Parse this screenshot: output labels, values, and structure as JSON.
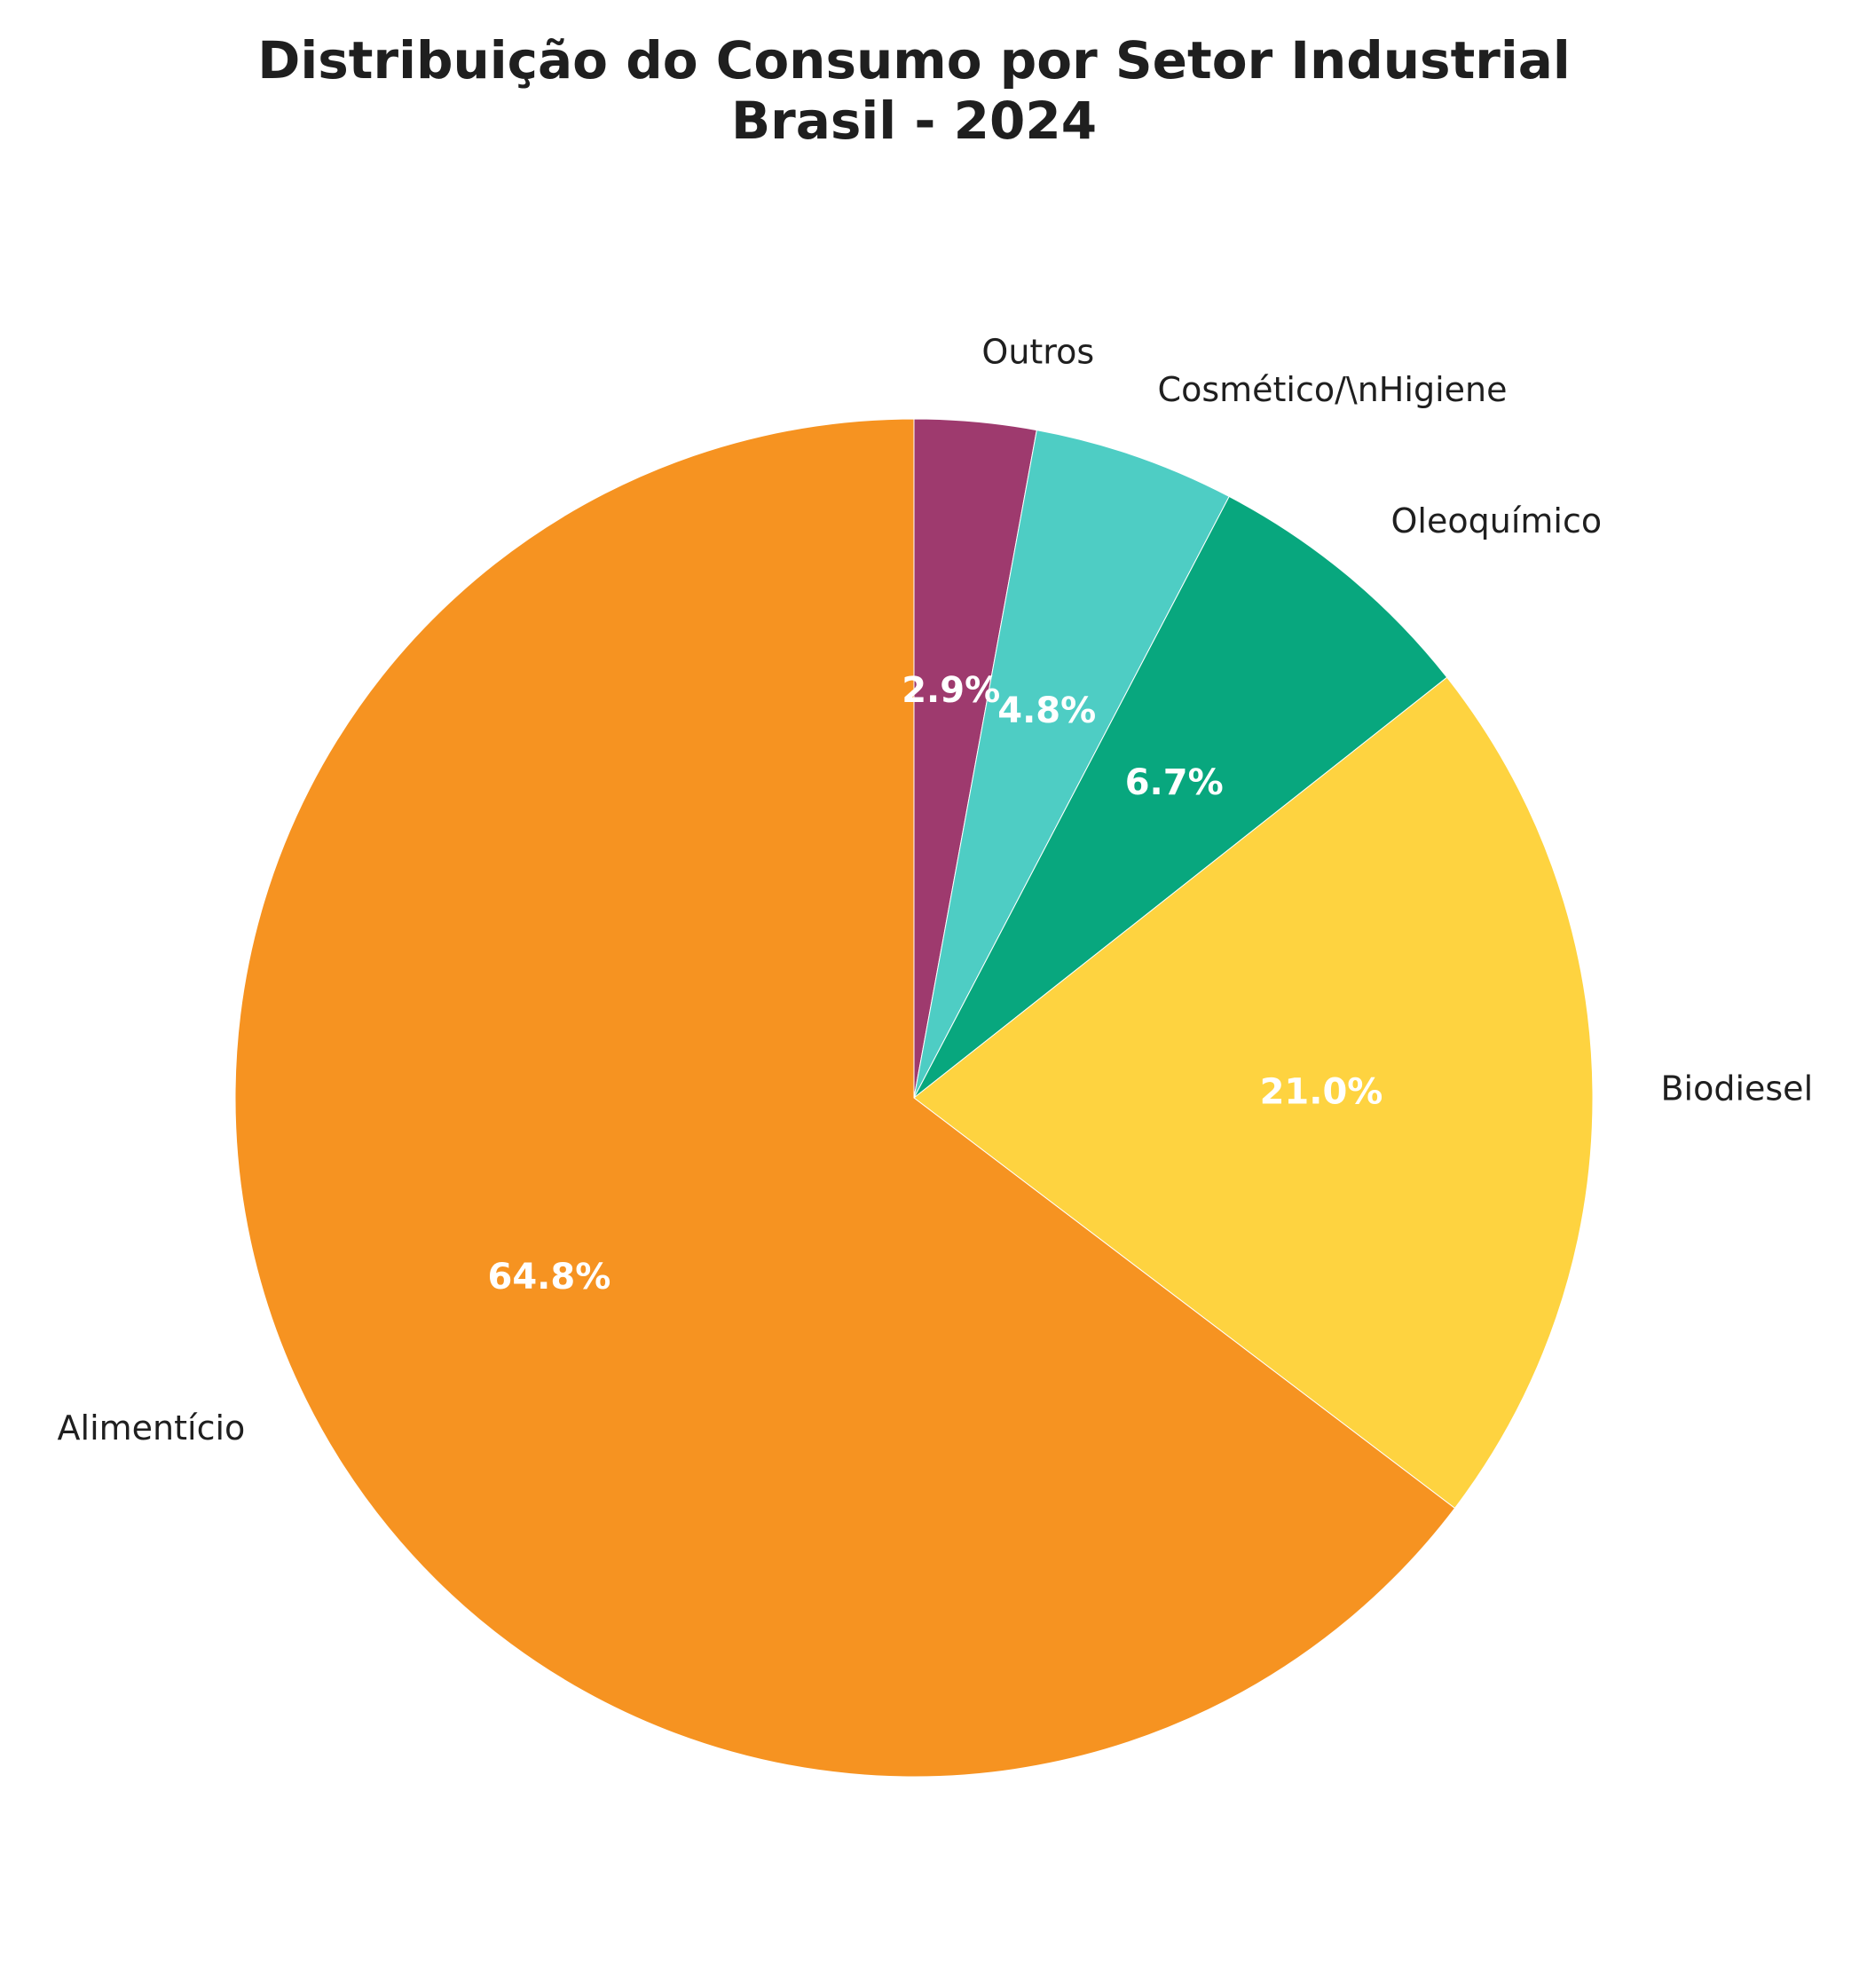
{
  "chart_data": {
    "type": "pie",
    "title_lines": [
      "Distribuição do Consumo por Setor Industrial",
      "Brasil - 2024"
    ],
    "start_angle_deg": 90,
    "direction": "clockwise",
    "slices": [
      {
        "label": "Outros",
        "value": 2.9,
        "pct_label": "2.9%",
        "color": "#9E3A6E"
      },
      {
        "label": "Cosmético/\\nHigiene",
        "value": 4.8,
        "pct_label": "4.8%",
        "color": "#4ECDC4"
      },
      {
        "label": "Oleoquímico",
        "value": 6.7,
        "pct_label": "6.7%",
        "color": "#08A77E"
      },
      {
        "label": "Biodiesel",
        "value": 21.0,
        "pct_label": "21.0%",
        "color": "#FED340"
      },
      {
        "label": "Alimentício",
        "value": 64.8,
        "pct_label": "64.8%",
        "color": "#F69321"
      }
    ],
    "slice_edge_color": "#ffffff",
    "legend": "none"
  }
}
